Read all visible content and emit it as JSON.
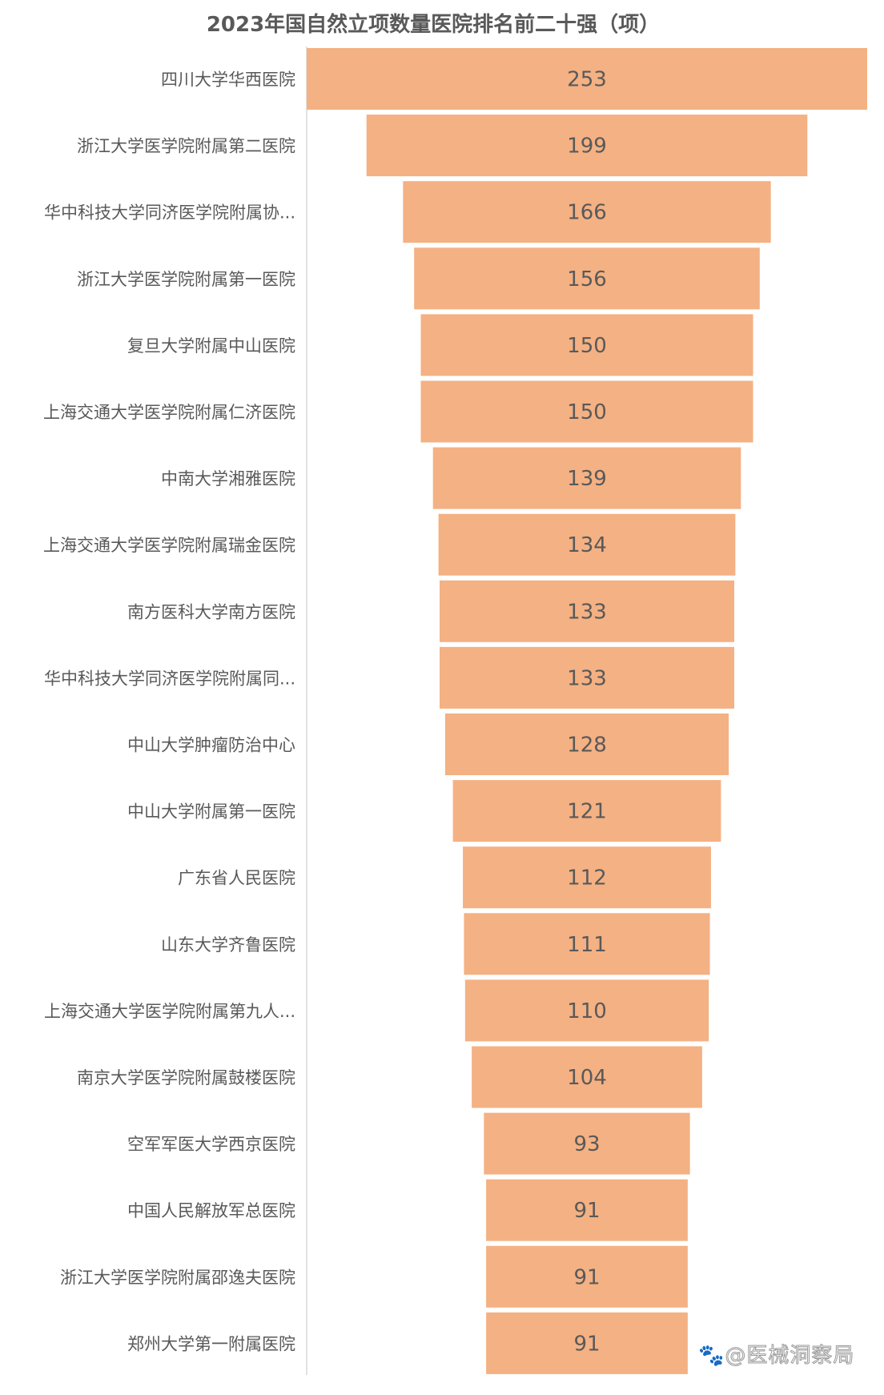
{
  "chart_data": {
    "type": "bar",
    "orientation": "horizontal-centered",
    "title": "2023年国自然立项数量医院排名前二十强（项）",
    "categories": [
      "四川大学华西医院",
      "浙江大学医学院附属第二医院",
      "华中科技大学同济医学院附属协...",
      "浙江大学医学院附属第一医院",
      "复旦大学附属中山医院",
      "上海交通大学医学院附属仁济医院",
      "中南大学湘雅医院",
      "上海交通大学医学院附属瑞金医院",
      "南方医科大学南方医院",
      "华中科技大学同济医学院附属同...",
      "中山大学肿瘤防治中心",
      "中山大学附属第一医院",
      "广东省人民医院",
      "山东大学齐鲁医院",
      "上海交通大学医学院附属第九人...",
      "南京大学医学院附属鼓楼医院",
      "空军军医大学西京医院",
      "中国人民解放军总医院",
      "浙江大学医学院附属邵逸夫医院",
      "郑州大学第一附属医院"
    ],
    "values": [
      253,
      199,
      166,
      156,
      150,
      150,
      139,
      134,
      133,
      133,
      128,
      121,
      112,
      111,
      110,
      104,
      93,
      91,
      91,
      91
    ],
    "xlim": [
      0,
      253
    ],
    "grid": false,
    "legend": "none",
    "data_labels": true
  },
  "colors": {
    "bar": "#F4B183",
    "text": "#595959",
    "axis": "#D9D9D9"
  },
  "watermark": "🐾@医械洞察局"
}
